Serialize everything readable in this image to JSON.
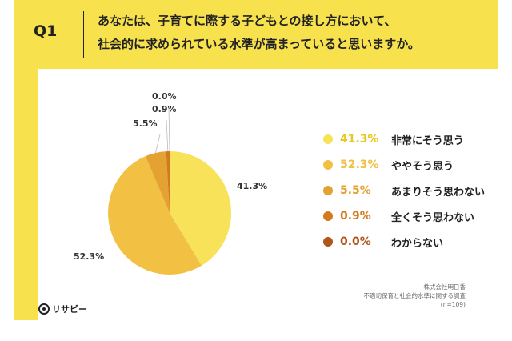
{
  "header": {
    "qnum": "Q1",
    "question_line1": "あなたは、子育てに際する子どもとの接し方において、",
    "question_line2": "社会的に求められている水準が高まっていると思いますか。"
  },
  "chart_data": {
    "type": "pie",
    "categories": [
      "非常にそう思う",
      "ややそう思う",
      "あまりそう思わない",
      "全くそう思わない",
      "わからない"
    ],
    "values": [
      41.3,
      52.3,
      5.5,
      0.9,
      0.0
    ],
    "value_labels": [
      "41.3%",
      "52.3%",
      "5.5%",
      "0.9%",
      "0.0%"
    ],
    "colors": [
      "#f7e25a",
      "#f2c043",
      "#e4a232",
      "#d27b1e",
      "#b0561a"
    ],
    "legend_position": "right",
    "start_angle": "12 o'clock",
    "direction": "clockwise"
  },
  "source": {
    "company": "株式会社明日香",
    "survey": "不適切保育と社会的水準に関する調査",
    "n": "(n=109)"
  },
  "logo": {
    "name": "リサピー",
    "icon": "smile-circle-icon"
  }
}
